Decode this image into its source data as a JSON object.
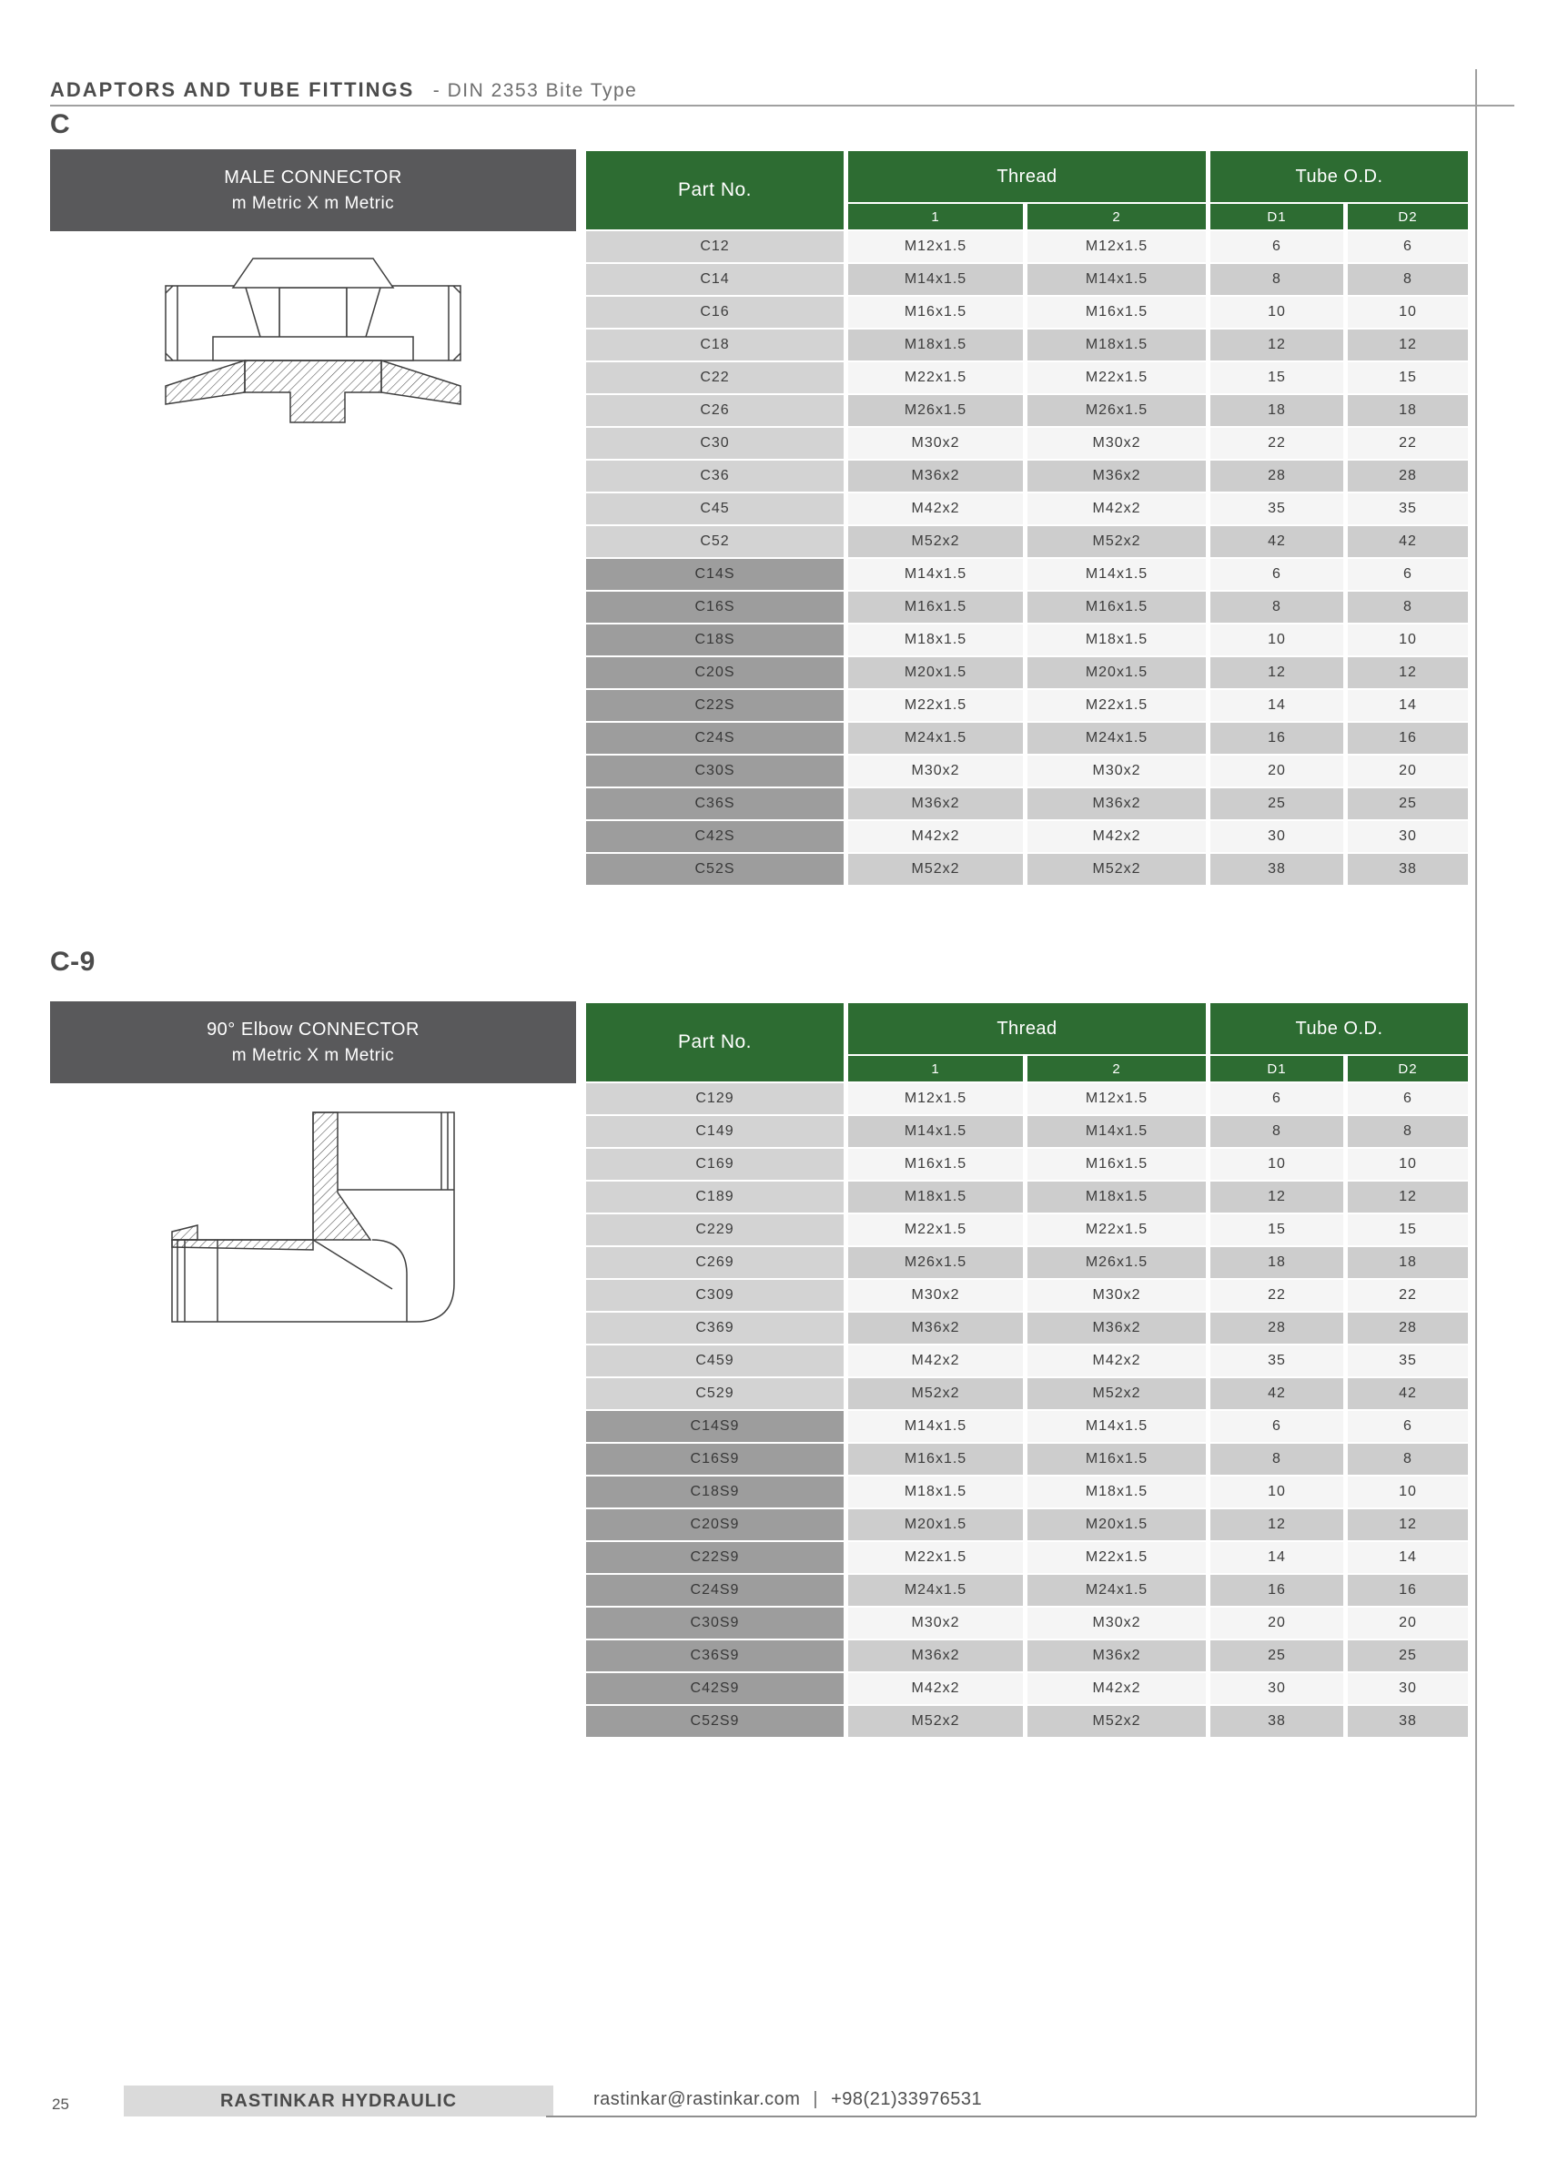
{
  "header": {
    "title_main": "ADAPTORS AND TUBE FITTINGS",
    "title_sub": "- DIN 2353 Bite Type"
  },
  "columns": {
    "part_no": "Part No.",
    "thread": "Thread",
    "tube_od": "Tube O.D.",
    "thread_1": "1",
    "thread_2": "2",
    "d1": "D1",
    "d2": "D2"
  },
  "sections": [
    {
      "heading": "C",
      "product_line1": "MALE CONNECTOR",
      "product_line2": "m Metric X m Metric",
      "drawing": "male-connector-drawing",
      "rows": [
        {
          "part": "C12",
          "thread1": "M12x1.5",
          "thread2": "M12x1.5",
          "d1": "6",
          "d2": "6",
          "series_s": false
        },
        {
          "part": "C14",
          "thread1": "M14x1.5",
          "thread2": "M14x1.5",
          "d1": "8",
          "d2": "8",
          "series_s": false
        },
        {
          "part": "C16",
          "thread1": "M16x1.5",
          "thread2": "M16x1.5",
          "d1": "10",
          "d2": "10",
          "series_s": false
        },
        {
          "part": "C18",
          "thread1": "M18x1.5",
          "thread2": "M18x1.5",
          "d1": "12",
          "d2": "12",
          "series_s": false
        },
        {
          "part": "C22",
          "thread1": "M22x1.5",
          "thread2": "M22x1.5",
          "d1": "15",
          "d2": "15",
          "series_s": false
        },
        {
          "part": "C26",
          "thread1": "M26x1.5",
          "thread2": "M26x1.5",
          "d1": "18",
          "d2": "18",
          "series_s": false
        },
        {
          "part": "C30",
          "thread1": "M30x2",
          "thread2": "M30x2",
          "d1": "22",
          "d2": "22",
          "series_s": false
        },
        {
          "part": "C36",
          "thread1": "M36x2",
          "thread2": "M36x2",
          "d1": "28",
          "d2": "28",
          "series_s": false
        },
        {
          "part": "C45",
          "thread1": "M42x2",
          "thread2": "M42x2",
          "d1": "35",
          "d2": "35",
          "series_s": false
        },
        {
          "part": "C52",
          "thread1": "M52x2",
          "thread2": "M52x2",
          "d1": "42",
          "d2": "42",
          "series_s": false
        },
        {
          "part": "C14S",
          "thread1": "M14x1.5",
          "thread2": "M14x1.5",
          "d1": "6",
          "d2": "6",
          "series_s": true
        },
        {
          "part": "C16S",
          "thread1": "M16x1.5",
          "thread2": "M16x1.5",
          "d1": "8",
          "d2": "8",
          "series_s": true
        },
        {
          "part": "C18S",
          "thread1": "M18x1.5",
          "thread2": "M18x1.5",
          "d1": "10",
          "d2": "10",
          "series_s": true
        },
        {
          "part": "C20S",
          "thread1": "M20x1.5",
          "thread2": "M20x1.5",
          "d1": "12",
          "d2": "12",
          "series_s": true
        },
        {
          "part": "C22S",
          "thread1": "M22x1.5",
          "thread2": "M22x1.5",
          "d1": "14",
          "d2": "14",
          "series_s": true
        },
        {
          "part": "C24S",
          "thread1": "M24x1.5",
          "thread2": "M24x1.5",
          "d1": "16",
          "d2": "16",
          "series_s": true
        },
        {
          "part": "C30S",
          "thread1": "M30x2",
          "thread2": "M30x2",
          "d1": "20",
          "d2": "20",
          "series_s": true
        },
        {
          "part": "C36S",
          "thread1": "M36x2",
          "thread2": "M36x2",
          "d1": "25",
          "d2": "25",
          "series_s": true
        },
        {
          "part": "C42S",
          "thread1": "M42x2",
          "thread2": "M42x2",
          "d1": "30",
          "d2": "30",
          "series_s": true
        },
        {
          "part": "C52S",
          "thread1": "M52x2",
          "thread2": "M52x2",
          "d1": "38",
          "d2": "38",
          "series_s": true
        }
      ]
    },
    {
      "heading": "C-9",
      "product_line1": "90° Elbow CONNECTOR",
      "product_line2": "m Metric X m Metric",
      "drawing": "elbow-connector-drawing",
      "rows": [
        {
          "part": "C129",
          "thread1": "M12x1.5",
          "thread2": "M12x1.5",
          "d1": "6",
          "d2": "6",
          "series_s": false
        },
        {
          "part": "C149",
          "thread1": "M14x1.5",
          "thread2": "M14x1.5",
          "d1": "8",
          "d2": "8",
          "series_s": false
        },
        {
          "part": "C169",
          "thread1": "M16x1.5",
          "thread2": "M16x1.5",
          "d1": "10",
          "d2": "10",
          "series_s": false
        },
        {
          "part": "C189",
          "thread1": "M18x1.5",
          "thread2": "M18x1.5",
          "d1": "12",
          "d2": "12",
          "series_s": false
        },
        {
          "part": "C229",
          "thread1": "M22x1.5",
          "thread2": "M22x1.5",
          "d1": "15",
          "d2": "15",
          "series_s": false
        },
        {
          "part": "C269",
          "thread1": "M26x1.5",
          "thread2": "M26x1.5",
          "d1": "18",
          "d2": "18",
          "series_s": false
        },
        {
          "part": "C309",
          "thread1": "M30x2",
          "thread2": "M30x2",
          "d1": "22",
          "d2": "22",
          "series_s": false
        },
        {
          "part": "C369",
          "thread1": "M36x2",
          "thread2": "M36x2",
          "d1": "28",
          "d2": "28",
          "series_s": false
        },
        {
          "part": "C459",
          "thread1": "M42x2",
          "thread2": "M42x2",
          "d1": "35",
          "d2": "35",
          "series_s": false
        },
        {
          "part": "C529",
          "thread1": "M52x2",
          "thread2": "M52x2",
          "d1": "42",
          "d2": "42",
          "series_s": false
        },
        {
          "part": "C14S9",
          "thread1": "M14x1.5",
          "thread2": "M14x1.5",
          "d1": "6",
          "d2": "6",
          "series_s": true
        },
        {
          "part": "C16S9",
          "thread1": "M16x1.5",
          "thread2": "M16x1.5",
          "d1": "8",
          "d2": "8",
          "series_s": true
        },
        {
          "part": "C18S9",
          "thread1": "M18x1.5",
          "thread2": "M18x1.5",
          "d1": "10",
          "d2": "10",
          "series_s": true
        },
        {
          "part": "C20S9",
          "thread1": "M20x1.5",
          "thread2": "M20x1.5",
          "d1": "12",
          "d2": "12",
          "series_s": true
        },
        {
          "part": "C22S9",
          "thread1": "M22x1.5",
          "thread2": "M22x1.5",
          "d1": "14",
          "d2": "14",
          "series_s": true
        },
        {
          "part": "C24S9",
          "thread1": "M24x1.5",
          "thread2": "M24x1.5",
          "d1": "16",
          "d2": "16",
          "series_s": true
        },
        {
          "part": "C30S9",
          "thread1": "M30x2",
          "thread2": "M30x2",
          "d1": "20",
          "d2": "20",
          "series_s": true
        },
        {
          "part": "C36S9",
          "thread1": "M36x2",
          "thread2": "M36x2",
          "d1": "25",
          "d2": "25",
          "series_s": true
        },
        {
          "part": "C42S9",
          "thread1": "M42x2",
          "thread2": "M42x2",
          "d1": "30",
          "d2": "30",
          "series_s": true
        },
        {
          "part": "C52S9",
          "thread1": "M52x2",
          "thread2": "M52x2",
          "d1": "38",
          "d2": "38",
          "series_s": true
        }
      ]
    }
  ],
  "footer": {
    "page_number": "25",
    "brand": "RASTINKAR HYDRAULIC",
    "email": "rastinkar@rastinkar.com",
    "divider": "|",
    "phone": "+98(21)33976531"
  },
  "colors": {
    "accent_green": "#2d6c32",
    "header_gray": "#59595b",
    "row_light": "#f5f5f5",
    "row_dark": "#cdcdcd",
    "part_cell": "#d3d3d3",
    "part_cell_s": "#9d9d9d"
  }
}
